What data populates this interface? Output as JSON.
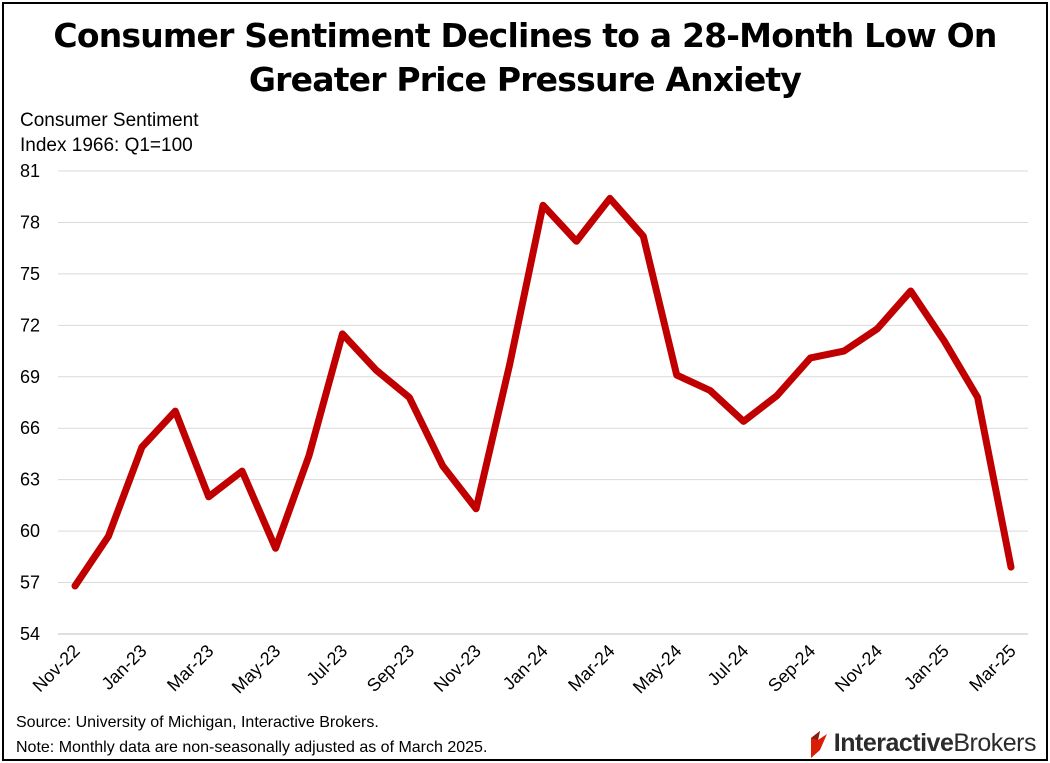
{
  "title_line1": "Consumer Sentiment Declines to a 28-Month Low On",
  "title_line2": "Greater Price Pressure Anxiety",
  "notes": {
    "source": "Source: University of Michigan, Interactive Brokers.",
    "note": "Note: Monthly data are non-seasonally adjusted as of March 2025."
  },
  "logo": {
    "bold": "Interactive",
    "light": "Brokers",
    "icon": "ib-flag-icon"
  },
  "colors": {
    "line": "#c00000",
    "grid": "#d9d9d9",
    "text": "#000000"
  },
  "chart_data": {
    "type": "line",
    "ylabel_line1": "Consumer Sentiment",
    "ylabel_line2": "Index 1966: Q1=100",
    "ylim": [
      54,
      81
    ],
    "yticks": [
      54,
      57,
      60,
      63,
      66,
      69,
      72,
      75,
      78,
      81
    ],
    "grid": true,
    "legend": "none",
    "x": [
      "Nov-22",
      "Dec-22",
      "Jan-23",
      "Feb-23",
      "Mar-23",
      "Apr-23",
      "May-23",
      "Jun-23",
      "Jul-23",
      "Aug-23",
      "Sep-23",
      "Oct-23",
      "Nov-23",
      "Dec-23",
      "Jan-24",
      "Feb-24",
      "Mar-24",
      "Apr-24",
      "May-24",
      "Jun-24",
      "Jul-24",
      "Aug-24",
      "Sep-24",
      "Oct-24",
      "Nov-24",
      "Dec-24",
      "Jan-25",
      "Feb-25",
      "Mar-25"
    ],
    "xtick_labels": [
      "Nov-22",
      "Jan-23",
      "Mar-23",
      "May-23",
      "Jul-23",
      "Sep-23",
      "Nov-23",
      "Jan-24",
      "Mar-24",
      "May-24",
      "Jul-24",
      "Sep-24",
      "Nov-24",
      "Jan-25",
      "Mar-25"
    ],
    "series": [
      {
        "values": [
          56.8,
          59.7,
          64.9,
          67.0,
          62.0,
          63.5,
          59.0,
          64.4,
          71.5,
          69.4,
          67.8,
          63.8,
          61.3,
          69.7,
          79.0,
          76.9,
          79.4,
          77.2,
          69.1,
          68.2,
          66.4,
          67.9,
          70.1,
          70.5,
          71.8,
          74.0,
          71.1,
          67.8,
          57.9
        ]
      }
    ]
  }
}
